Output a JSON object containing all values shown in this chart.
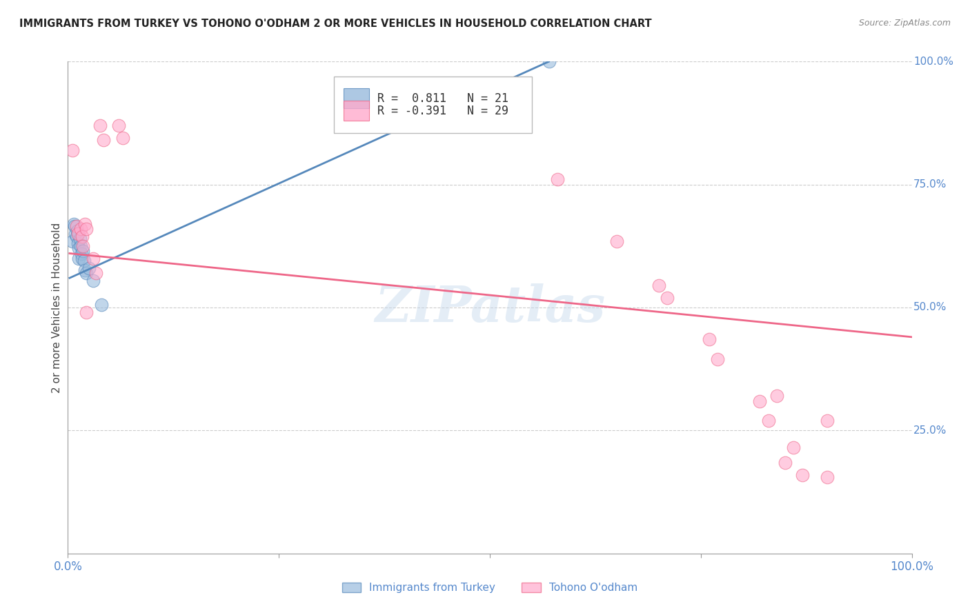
{
  "title": "IMMIGRANTS FROM TURKEY VS TOHONO O'ODHAM 2 OR MORE VEHICLES IN HOUSEHOLD CORRELATION CHART",
  "source": "Source: ZipAtlas.com",
  "ylabel": "2 or more Vehicles in Household",
  "xlim": [
    0,
    1.0
  ],
  "ylim": [
    0,
    1.0
  ],
  "ytick_labels_right": [
    "100.0%",
    "75.0%",
    "50.0%",
    "25.0%"
  ],
  "ytick_positions_right": [
    1.0,
    0.75,
    0.5,
    0.25
  ],
  "grid_color": "#cccccc",
  "background_color": "#ffffff",
  "watermark": "ZIPatlas",
  "blue_color": "#99bbdd",
  "pink_color": "#ffaacc",
  "blue_line_color": "#5588bb",
  "pink_line_color": "#ee6688",
  "blue_label": "Immigrants from Turkey",
  "pink_label": "Tohono O'odham",
  "blue_scatter": [
    [
      0.005,
      0.635
    ],
    [
      0.007,
      0.67
    ],
    [
      0.008,
      0.665
    ],
    [
      0.009,
      0.65
    ],
    [
      0.01,
      0.645
    ],
    [
      0.011,
      0.655
    ],
    [
      0.012,
      0.63
    ],
    [
      0.013,
      0.62
    ],
    [
      0.013,
      0.6
    ],
    [
      0.014,
      0.64
    ],
    [
      0.015,
      0.625
    ],
    [
      0.016,
      0.61
    ],
    [
      0.017,
      0.6
    ],
    [
      0.018,
      0.615
    ],
    [
      0.019,
      0.595
    ],
    [
      0.02,
      0.575
    ],
    [
      0.022,
      0.57
    ],
    [
      0.025,
      0.58
    ],
    [
      0.03,
      0.555
    ],
    [
      0.04,
      0.505
    ],
    [
      0.57,
      1.0
    ]
  ],
  "pink_scatter": [
    [
      0.005,
      0.82
    ],
    [
      0.01,
      0.665
    ],
    [
      0.012,
      0.65
    ],
    [
      0.015,
      0.66
    ],
    [
      0.017,
      0.645
    ],
    [
      0.018,
      0.625
    ],
    [
      0.02,
      0.67
    ],
    [
      0.022,
      0.66
    ],
    [
      0.03,
      0.6
    ],
    [
      0.033,
      0.57
    ],
    [
      0.038,
      0.87
    ],
    [
      0.042,
      0.84
    ],
    [
      0.06,
      0.87
    ],
    [
      0.065,
      0.845
    ],
    [
      0.022,
      0.49
    ],
    [
      0.58,
      0.76
    ],
    [
      0.65,
      0.635
    ],
    [
      0.7,
      0.545
    ],
    [
      0.71,
      0.52
    ],
    [
      0.76,
      0.435
    ],
    [
      0.77,
      0.395
    ],
    [
      0.82,
      0.31
    ],
    [
      0.83,
      0.27
    ],
    [
      0.84,
      0.32
    ],
    [
      0.85,
      0.185
    ],
    [
      0.86,
      0.215
    ],
    [
      0.87,
      0.16
    ],
    [
      0.9,
      0.27
    ],
    [
      0.9,
      0.155
    ]
  ],
  "blue_line_x": [
    0.002,
    0.57
  ],
  "blue_line_y": [
    0.56,
    1.0
  ],
  "pink_line_x": [
    0.002,
    1.0
  ],
  "pink_line_y": [
    0.61,
    0.44
  ]
}
